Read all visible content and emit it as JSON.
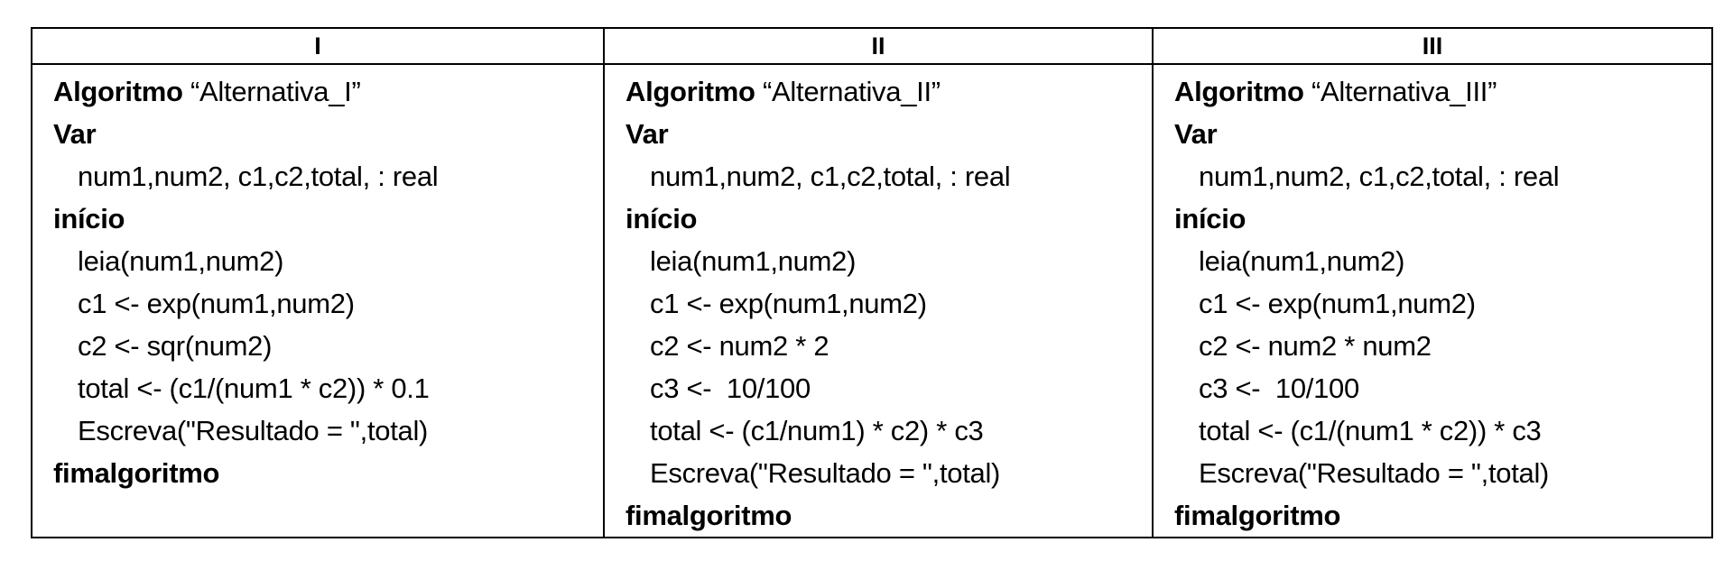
{
  "headers": [
    "I",
    "II",
    "III"
  ],
  "columns": [
    {
      "algo_keyword": "Algoritmo",
      "algo_name": "“Alternativa_I”",
      "var_keyword": "Var",
      "var_decl": "num1,num2, c1,c2,total, : real",
      "begin_keyword": "início",
      "statements": [
        "leia(num1,num2)",
        "c1 <- exp(num1,num2)",
        "c2 <- sqr(num2)",
        "total <- (c1/(num1 * c2)) * 0.1",
        "Escreva(\"Resultado = \",total)"
      ],
      "end_keyword": "fimalgoritmo"
    },
    {
      "algo_keyword": "Algoritmo",
      "algo_name": "“Alternativa_II”",
      "var_keyword": "Var",
      "var_decl": "num1,num2, c1,c2,total, : real",
      "begin_keyword": "início",
      "statements": [
        "leia(num1,num2)",
        "c1 <- exp(num1,num2)",
        "c2 <- num2 * 2",
        "c3 <-  10/100",
        "total <- (c1/num1) * c2) * c3",
        "Escreva(\"Resultado = \",total)"
      ],
      "end_keyword": "fimalgoritmo"
    },
    {
      "algo_keyword": "Algoritmo",
      "algo_name": "“Alternativa_III”",
      "var_keyword": "Var",
      "var_decl": "num1,num2, c1,c2,total, : real",
      "begin_keyword": "início",
      "statements": [
        "leia(num1,num2)",
        "c1 <- exp(num1,num2)",
        "c2 <- num2 * num2",
        "c3 <-  10/100",
        "total <- (c1/(num1 * c2)) * c3",
        "Escreva(\"Resultado = \",total)"
      ],
      "end_keyword": "fimalgoritmo"
    }
  ]
}
